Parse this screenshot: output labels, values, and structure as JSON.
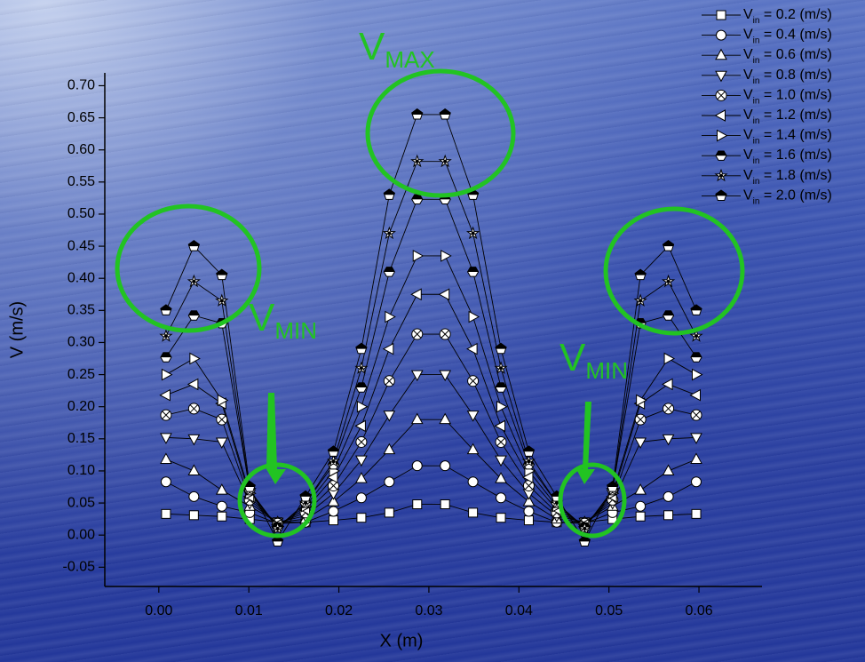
{
  "chart_data": {
    "type": "line",
    "x_label": "X (m)",
    "y_label": "V (m/s)",
    "xlim": [
      -0.006,
      0.067
    ],
    "ylim": [
      -0.08,
      0.72
    ],
    "xticks": [
      {
        "value": 0,
        "label": "0.00"
      },
      0.01,
      0.02,
      0.03,
      0.04,
      0.05,
      0.06
    ],
    "yticks": [
      -0.05,
      {
        "value": 0,
        "label": "0.00"
      },
      0.05,
      {
        "value": 0.1,
        "label": "0.10"
      },
      0.15,
      {
        "value": 0.2,
        "label": "0.20"
      },
      0.25,
      {
        "value": 0.3,
        "label": "0.30"
      },
      0.35,
      {
        "value": 0.4,
        "label": "0.40"
      },
      0.45,
      {
        "value": 0.5,
        "label": "0.50"
      },
      0.55,
      {
        "value": 0.6,
        "label": "0.60"
      },
      0.65,
      {
        "value": 0.7,
        "label": "0.70"
      }
    ],
    "legend_position": "top-right",
    "legend_prefix": {
      "main": "V",
      "sub": "in"
    },
    "x": [
      0.0008,
      0.0039,
      0.007,
      0.0101,
      0.0132,
      0.0163,
      0.0194,
      0.0225,
      0.0256,
      0.0287,
      0.0318,
      0.0349,
      0.038,
      0.0411,
      0.0442,
      0.0473,
      0.0504,
      0.0535,
      0.0566,
      0.0597
    ],
    "series": [
      {
        "name": " = 0.2 (m/s)",
        "color": "#000000",
        "marker": "square",
        "values": [
          0.033,
          0.031,
          0.029,
          0.025,
          0.02,
          0.02,
          0.023,
          0.027,
          0.035,
          0.048,
          0.048,
          0.035,
          0.027,
          0.023,
          0.02,
          0.02,
          0.025,
          0.029,
          0.031,
          0.033
        ]
      },
      {
        "name": " = 0.4 (m/s)",
        "color": "#000000",
        "marker": "circle",
        "values": [
          0.083,
          0.06,
          0.045,
          0.035,
          0.018,
          0.02,
          0.037,
          0.058,
          0.083,
          0.108,
          0.108,
          0.083,
          0.058,
          0.037,
          0.02,
          0.018,
          0.035,
          0.045,
          0.06,
          0.083
        ]
      },
      {
        "name": " = 0.6 (m/s)",
        "color": "#000000",
        "marker": "triangle-up",
        "values": [
          0.118,
          0.1,
          0.07,
          0.045,
          0.02,
          0.025,
          0.052,
          0.088,
          0.133,
          0.18,
          0.18,
          0.133,
          0.088,
          0.052,
          0.025,
          0.02,
          0.045,
          0.07,
          0.1,
          0.118
        ]
      },
      {
        "name": " = 0.8 (m/s)",
        "color": "#000000",
        "marker": "triangle-down",
        "values": [
          0.152,
          0.15,
          0.145,
          0.05,
          0.02,
          0.03,
          0.065,
          0.117,
          0.187,
          0.25,
          0.25,
          0.187,
          0.117,
          0.065,
          0.03,
          0.02,
          0.05,
          0.145,
          0.15,
          0.152
        ]
      },
      {
        "name": " = 1.0 (m/s)",
        "color": "#000000",
        "marker": "circle-x",
        "values": [
          0.187,
          0.197,
          0.18,
          0.055,
          0.018,
          0.035,
          0.077,
          0.145,
          0.24,
          0.313,
          0.313,
          0.24,
          0.145,
          0.077,
          0.035,
          0.018,
          0.055,
          0.18,
          0.197,
          0.187
        ]
      },
      {
        "name": " = 1.2 (m/s)",
        "color": "#000000",
        "marker": "triangle-left",
        "values": [
          0.218,
          0.235,
          0.205,
          0.06,
          0.016,
          0.04,
          0.09,
          0.17,
          0.29,
          0.375,
          0.375,
          0.29,
          0.17,
          0.09,
          0.04,
          0.016,
          0.06,
          0.205,
          0.235,
          0.218
        ]
      },
      {
        "name": " = 1.4 (m/s)",
        "color": "#000000",
        "marker": "triangle-right",
        "values": [
          0.25,
          0.275,
          0.21,
          0.065,
          0.014,
          0.045,
          0.1,
          0.2,
          0.34,
          0.435,
          0.435,
          0.34,
          0.2,
          0.1,
          0.045,
          0.014,
          0.065,
          0.21,
          0.275,
          0.25
        ]
      },
      {
        "name": " = 1.6 (m/s)",
        "color": "#000000",
        "marker": "hexagon-half",
        "values": [
          0.277,
          0.342,
          0.33,
          0.07,
          0.012,
          0.05,
          0.11,
          0.23,
          0.41,
          0.523,
          0.523,
          0.41,
          0.23,
          0.11,
          0.05,
          0.012,
          0.07,
          0.33,
          0.342,
          0.277
        ]
      },
      {
        "name": " = 1.8 (m/s)",
        "color": "#000000",
        "marker": "star",
        "values": [
          0.31,
          0.395,
          0.365,
          0.07,
          0.01,
          0.05,
          0.115,
          0.26,
          0.47,
          0.582,
          0.582,
          0.47,
          0.26,
          0.115,
          0.05,
          0.01,
          0.07,
          0.365,
          0.395,
          0.31
        ]
      },
      {
        "name": " = 2.0 (m/s)",
        "color": "#000000",
        "marker": "pentagon-half",
        "values": [
          0.35,
          0.45,
          0.405,
          0.075,
          -0.01,
          0.06,
          0.13,
          0.29,
          0.53,
          0.655,
          0.655,
          0.53,
          0.29,
          0.13,
          0.06,
          -0.01,
          0.075,
          0.405,
          0.45,
          0.35
        ]
      }
    ],
    "annotation_color": "#22c322",
    "annotations": [
      {
        "text": "V",
        "sub": "MAX"
      },
      {
        "text": "V",
        "sub": "MIN"
      },
      {
        "text": "V",
        "sub": "MIN"
      }
    ]
  }
}
